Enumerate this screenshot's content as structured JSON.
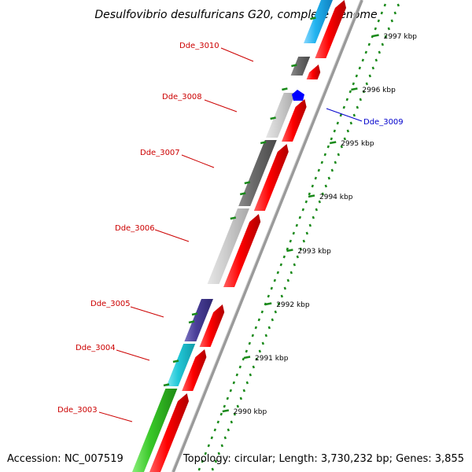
{
  "title": "Desulfovibrio desulfuricans G20, complete genome",
  "footer": {
    "accession": "Accession: NC_007519",
    "topology": "Topology: circular; Length: 3,730,232 bp; Genes: 3,855"
  },
  "colors": {
    "cds_forward": "#ff0000",
    "cds_reverse": "#0000ff",
    "label_forward": "#cc0000",
    "label_reverse": "#0000cc",
    "tick": "#1a8a1a",
    "backbone": "#999999"
  },
  "ticks": [
    {
      "label": "2990 kbp"
    },
    {
      "label": "2991 kbp"
    },
    {
      "label": "2992 kbp"
    },
    {
      "label": "2993 kbp"
    },
    {
      "label": "2994 kbp"
    },
    {
      "label": "2995 kbp"
    },
    {
      "label": "2996 kbp"
    },
    {
      "label": "2997 kbp"
    }
  ],
  "gene_labels": [
    {
      "label": "Dde_3010",
      "strand": "forward"
    },
    {
      "label": "Dde_3009",
      "strand": "reverse"
    },
    {
      "label": "Dde_3008",
      "strand": "forward"
    },
    {
      "label": "Dde_3007",
      "strand": "forward"
    },
    {
      "label": "Dde_3006",
      "strand": "forward"
    },
    {
      "label": "Dde_3005",
      "strand": "forward"
    },
    {
      "label": "Dde_3004",
      "strand": "forward"
    },
    {
      "label": "Dde_3003",
      "strand": "forward"
    }
  ]
}
